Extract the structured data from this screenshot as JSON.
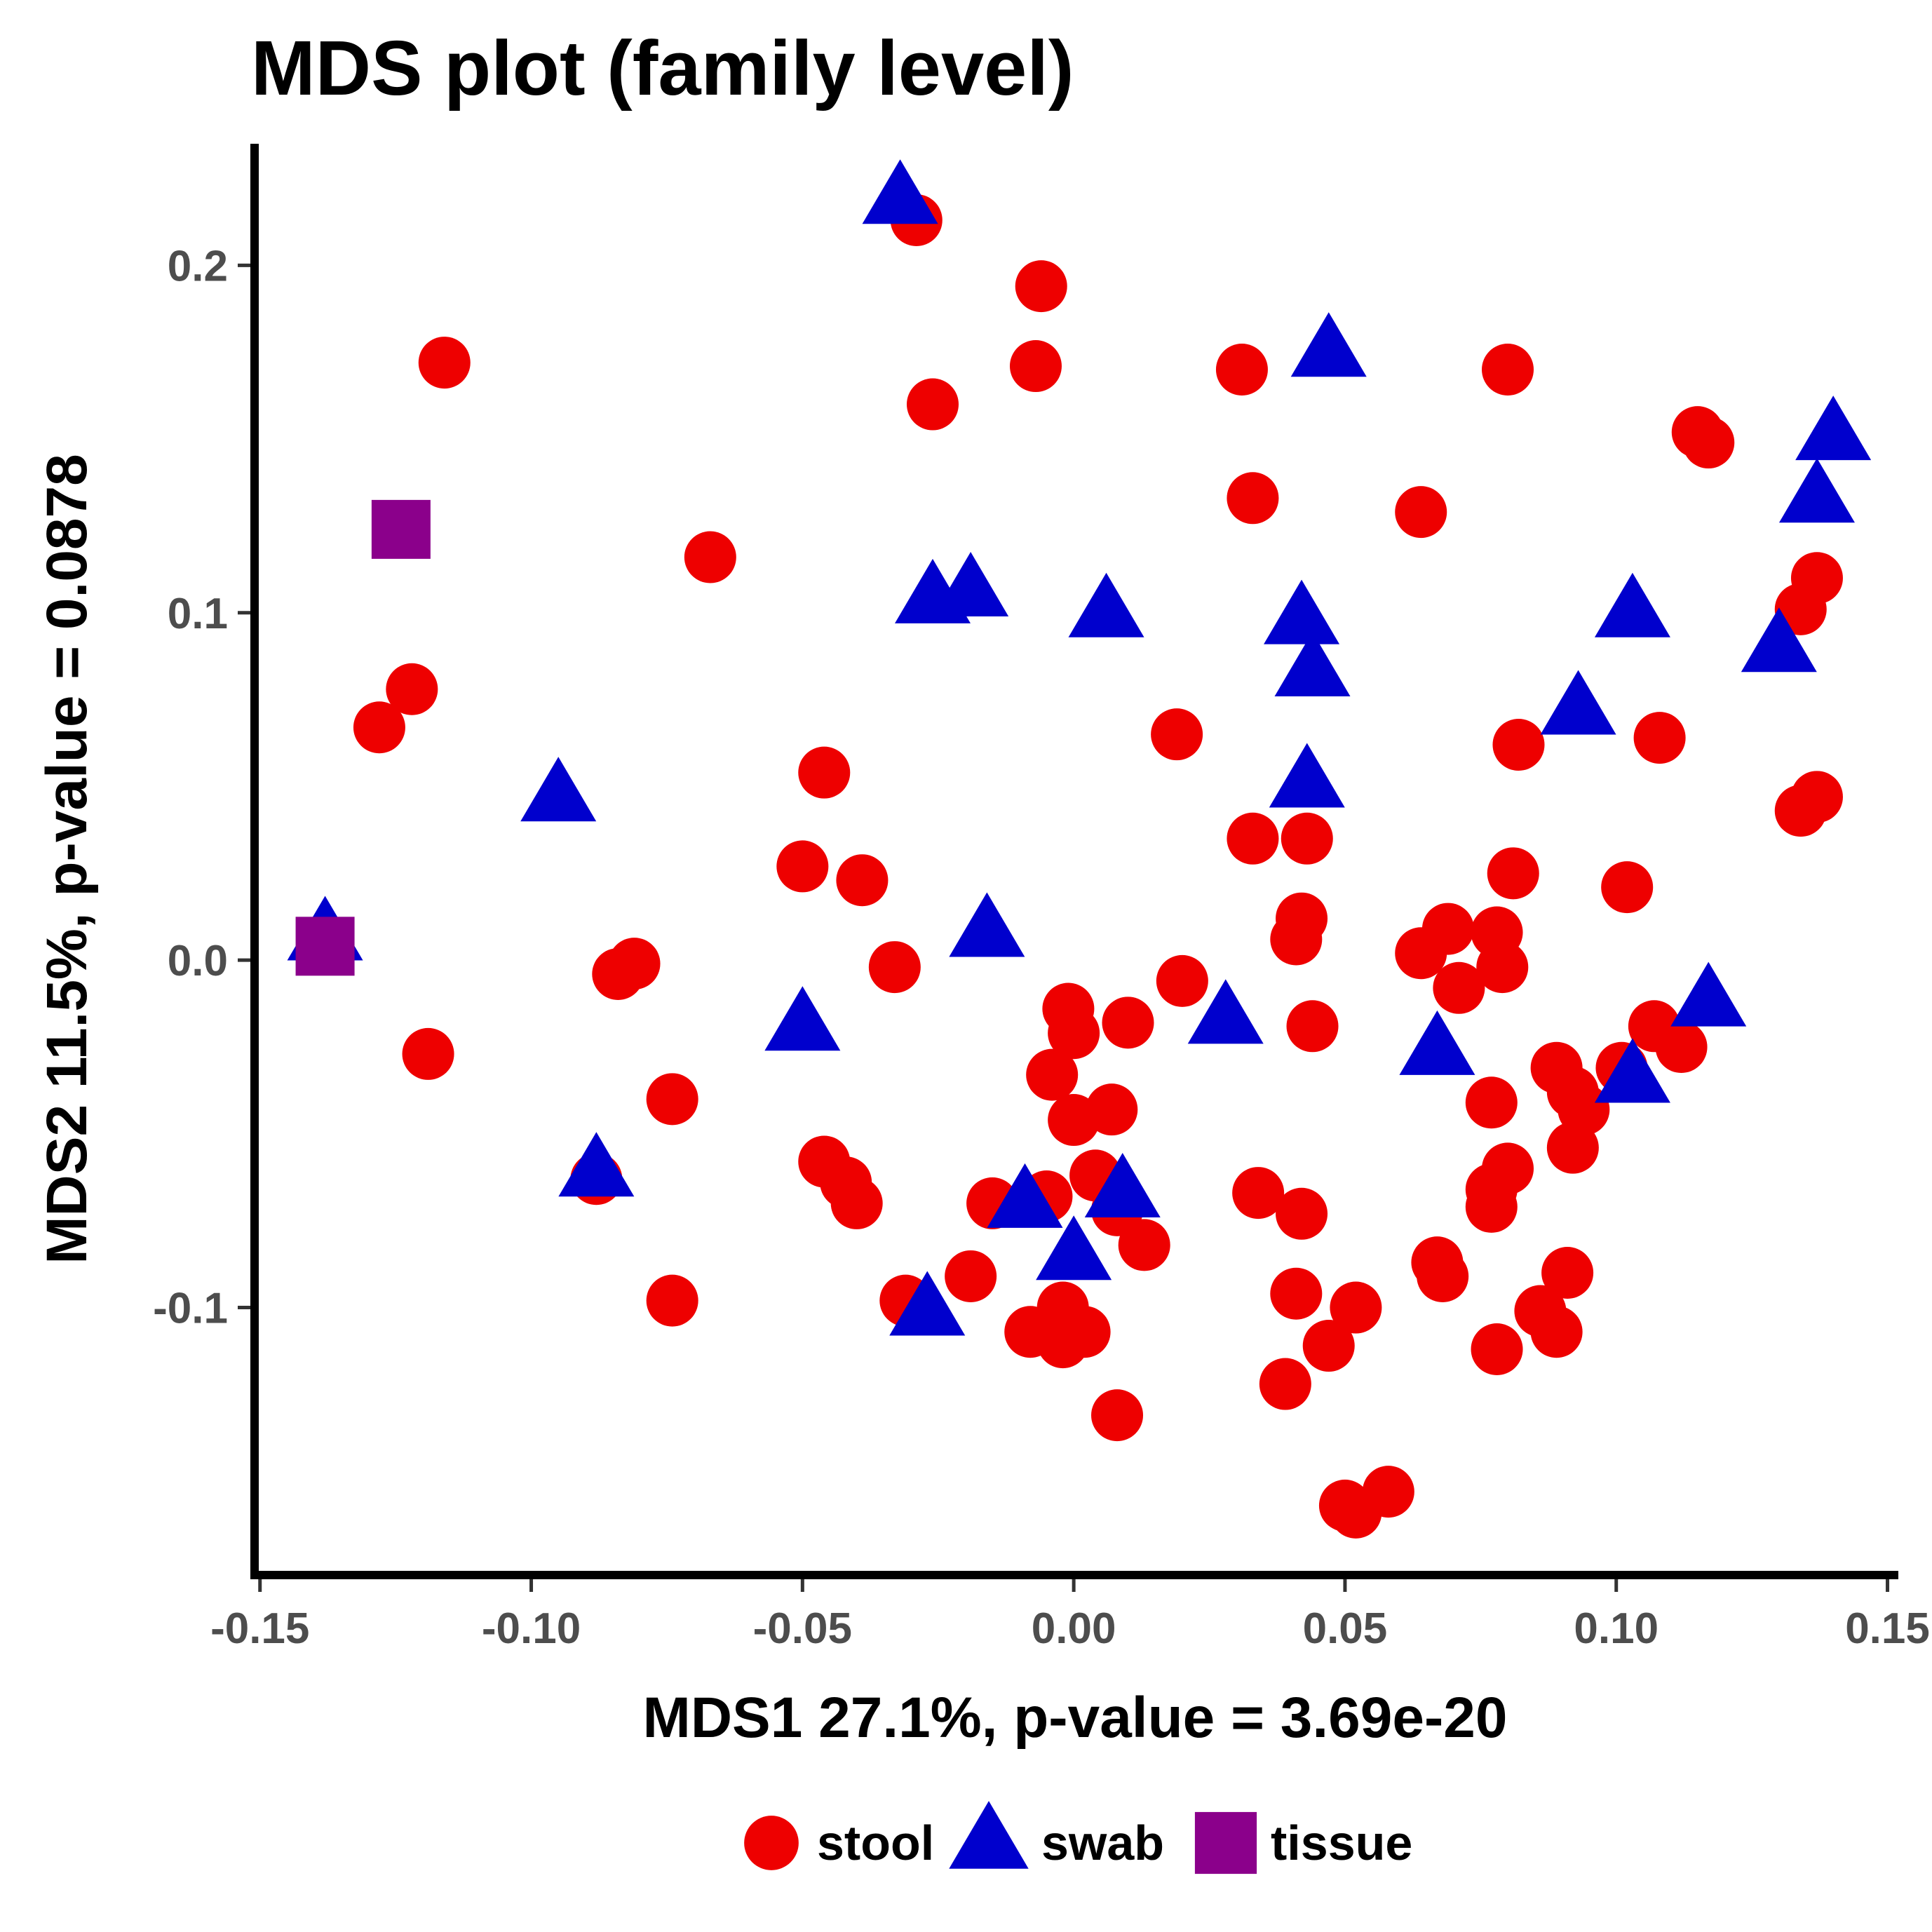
{
  "chart_data": {
    "type": "scatter",
    "title": "MDS plot (family level)",
    "xlabel": "MDS1 27.1%, p-value = 3.69e-20",
    "ylabel": "MDS2 11.5%, p-value = 0.0878",
    "xlim": [
      -0.151,
      0.152
    ],
    "ylim": [
      -0.177,
      0.235
    ],
    "x_ticks": [
      -0.15,
      -0.1,
      -0.05,
      0.0,
      0.05,
      0.1,
      0.15
    ],
    "x_tick_labels": [
      "-0.15",
      "-0.10",
      "-0.05",
      "0.00",
      "0.05",
      "0.10",
      "0.15"
    ],
    "y_ticks": [
      -0.1,
      0.0,
      0.1,
      0.2
    ],
    "y_tick_labels": [
      "-0.1",
      "0.0",
      "0.1",
      "0.2"
    ],
    "grid": false,
    "legend_position": "bottom",
    "series": [
      {
        "name": "stool",
        "shape": "circle",
        "color": "#ee0000",
        "points": [
          [
            -0.029,
            0.213
          ],
          [
            -0.006,
            0.194
          ],
          [
            -0.007,
            0.171
          ],
          [
            -0.026,
            0.16
          ],
          [
            -0.116,
            0.172
          ],
          [
            -0.067,
            0.116
          ],
          [
            -0.122,
            0.078
          ],
          [
            -0.128,
            0.067
          ],
          [
            -0.046,
            0.054
          ],
          [
            -0.05,
            0.027
          ],
          [
            -0.039,
            0.023
          ],
          [
            -0.033,
            -0.002
          ],
          [
            -0.084,
            -0.004
          ],
          [
            -0.081,
            -0.001
          ],
          [
            -0.119,
            -0.027
          ],
          [
            -0.074,
            -0.04
          ],
          [
            -0.046,
            -0.058
          ],
          [
            -0.042,
            -0.064
          ],
          [
            -0.04,
            -0.07
          ],
          [
            -0.088,
            -0.063
          ],
          [
            -0.074,
            -0.098
          ],
          [
            -0.031,
            -0.098
          ],
          [
            -0.019,
            -0.091
          ],
          [
            -0.015,
            -0.07
          ],
          [
            -0.005,
            -0.068
          ],
          [
            -0.008,
            -0.107
          ],
          [
            -0.002,
            -0.1
          ],
          [
            -0.002,
            -0.11
          ],
          [
            0.002,
            -0.107
          ],
          [
            0.008,
            -0.131
          ],
          [
            0.013,
            -0.082
          ],
          [
            0.008,
            -0.072
          ],
          [
            0.004,
            -0.062
          ],
          [
            0.007,
            -0.043
          ],
          [
            0.0,
            -0.046
          ],
          [
            -0.004,
            -0.033
          ],
          [
            0.0,
            -0.021
          ],
          [
            -0.001,
            -0.014
          ],
          [
            0.01,
            -0.018
          ],
          [
            0.02,
            -0.006
          ],
          [
            0.019,
            0.065
          ],
          [
            0.031,
            0.17
          ],
          [
            0.033,
            0.133
          ],
          [
            0.033,
            0.035
          ],
          [
            0.043,
            0.035
          ],
          [
            0.042,
            0.012
          ],
          [
            0.041,
            0.006
          ],
          [
            0.044,
            -0.019
          ],
          [
            0.034,
            -0.067
          ],
          [
            0.042,
            -0.073
          ],
          [
            0.041,
            -0.096
          ],
          [
            0.039,
            -0.122
          ],
          [
            0.047,
            -0.111
          ],
          [
            0.052,
            -0.1
          ],
          [
            0.05,
            -0.157
          ],
          [
            0.052,
            -0.159
          ],
          [
            0.058,
            -0.153
          ],
          [
            0.064,
            0.129
          ],
          [
            0.064,
            0.002
          ],
          [
            0.069,
            0.009
          ],
          [
            0.071,
            -0.008
          ],
          [
            0.067,
            -0.087
          ],
          [
            0.068,
            -0.091
          ],
          [
            0.078,
            0.008
          ],
          [
            0.079,
            -0.002
          ],
          [
            0.077,
            -0.041
          ],
          [
            0.077,
            -0.066
          ],
          [
            0.077,
            -0.071
          ],
          [
            0.08,
            -0.06
          ],
          [
            0.078,
            -0.112
          ],
          [
            0.08,
            0.17
          ],
          [
            0.082,
            0.062
          ],
          [
            0.081,
            0.025
          ],
          [
            0.089,
            -0.031
          ],
          [
            0.092,
            -0.038
          ],
          [
            0.094,
            -0.043
          ],
          [
            0.092,
            -0.054
          ],
          [
            0.086,
            -0.101
          ],
          [
            0.089,
            -0.107
          ],
          [
            0.091,
            -0.09
          ],
          [
            0.101,
            -0.031
          ],
          [
            0.102,
            0.021
          ],
          [
            0.107,
            -0.019
          ],
          [
            0.112,
            -0.025
          ],
          [
            0.108,
            0.064
          ],
          [
            0.115,
            0.152
          ],
          [
            0.117,
            0.149
          ],
          [
            0.134,
            0.101
          ],
          [
            0.137,
            0.11
          ],
          [
            0.134,
            0.043
          ],
          [
            0.137,
            0.047
          ]
        ]
      },
      {
        "name": "swab",
        "shape": "triangle",
        "color": "#0000cd",
        "points": [
          [
            -0.032,
            0.219
          ],
          [
            0.047,
            0.175
          ],
          [
            0.14,
            0.151
          ],
          [
            0.137,
            0.133
          ],
          [
            -0.026,
            0.104
          ],
          [
            -0.019,
            0.106
          ],
          [
            0.006,
            0.1
          ],
          [
            0.042,
            0.098
          ],
          [
            0.044,
            0.083
          ],
          [
            0.103,
            0.1
          ],
          [
            0.13,
            0.09
          ],
          [
            0.093,
            0.072
          ],
          [
            0.043,
            0.051
          ],
          [
            -0.095,
            0.047
          ],
          [
            -0.138,
            0.007
          ],
          [
            -0.016,
            0.008
          ],
          [
            -0.05,
            -0.019
          ],
          [
            0.028,
            -0.017
          ],
          [
            0.067,
            -0.026
          ],
          [
            0.117,
            -0.012
          ],
          [
            0.103,
            -0.034
          ],
          [
            -0.088,
            -0.061
          ],
          [
            -0.009,
            -0.07
          ],
          [
            0.009,
            -0.067
          ],
          [
            0.0,
            -0.085
          ],
          [
            -0.027,
            -0.101
          ]
        ]
      },
      {
        "name": "tissue",
        "shape": "square",
        "color": "#8b008b",
        "points": [
          [
            -0.124,
            0.124
          ],
          [
            -0.138,
            0.004
          ]
        ]
      }
    ]
  }
}
